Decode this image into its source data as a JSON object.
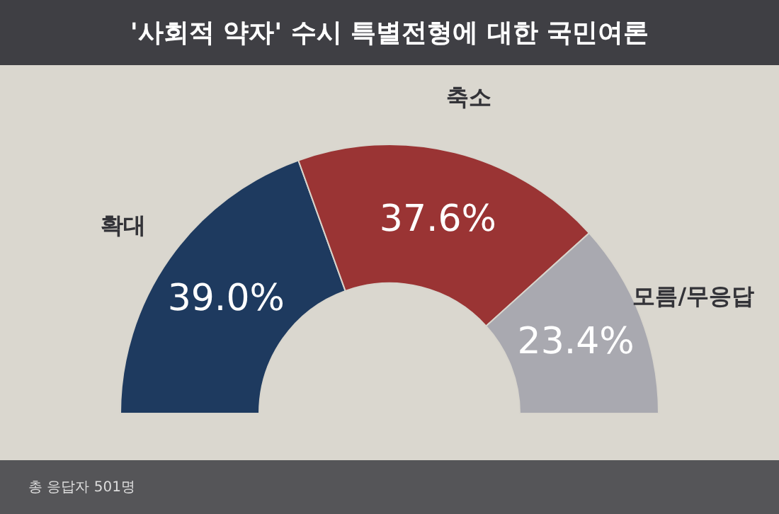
{
  "chart_data": {
    "type": "donut",
    "title": "'사회적 약자' 수시 특별전형에 대한 국민여론",
    "categories": [
      "확대",
      "축소",
      "모름/무응답"
    ],
    "values": [
      39.0,
      37.6,
      23.4
    ],
    "colors": [
      "#1e3a5f",
      "#9a3434",
      "#a9a9b0"
    ],
    "value_labels": [
      "39.0%",
      "37.6%",
      "23.4%"
    ],
    "annotations": [
      "총 응답자 501명"
    ]
  }
}
